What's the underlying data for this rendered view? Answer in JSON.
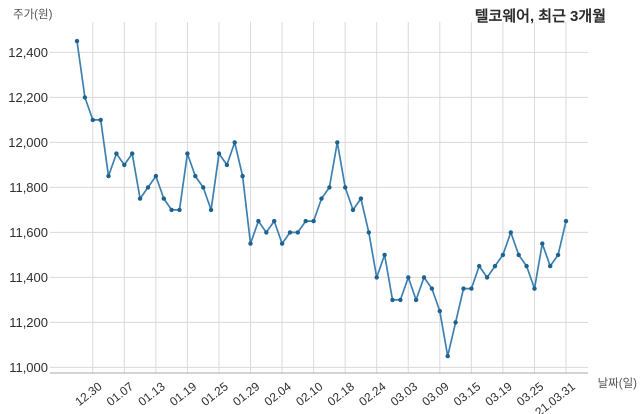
{
  "chart_data": {
    "type": "line",
    "title": "텔코웨어, 최근 3개월",
    "ylabel": "주가(원)",
    "xlabel": "날짜(일)",
    "values": [
      12450,
      12200,
      12100,
      12100,
      11850,
      11950,
      11900,
      11950,
      11750,
      11800,
      11850,
      11750,
      11700,
      11700,
      11950,
      11850,
      11800,
      11700,
      11950,
      11900,
      12000,
      11850,
      11550,
      11650,
      11600,
      11650,
      11550,
      11600,
      11600,
      11650,
      11650,
      11750,
      11800,
      12000,
      11800,
      11700,
      11750,
      11600,
      11400,
      11500,
      11300,
      11300,
      11400,
      11300,
      11400,
      11350,
      11250,
      11050,
      11200,
      11350,
      11350,
      11450,
      11400,
      11450,
      11500,
      11600,
      11500,
      11450,
      11350,
      11550,
      11450,
      11500,
      11650
    ],
    "x_tick_labels": [
      "12.30",
      "01.07",
      "01.13",
      "01.19",
      "01.25",
      "01.29",
      "02.04",
      "02.10",
      "02.18",
      "02.24",
      "03.03",
      "03.09",
      "03.15",
      "03.19",
      "03.25",
      "21.03.31"
    ],
    "x_tick_point_indices": [
      2,
      6,
      10,
      14,
      18,
      22,
      26,
      30,
      34,
      38,
      42,
      46,
      50,
      54,
      58,
      62
    ],
    "y_ticks": [
      11000,
      11200,
      11400,
      11600,
      11800,
      12000,
      12200,
      12400
    ],
    "y_tick_labels": [
      "11,000",
      "11,200",
      "11,400",
      "11,600",
      "11,800",
      "12,000",
      "12,200",
      "12,400"
    ],
    "ylim": [
      10975,
      12535
    ],
    "grid": true,
    "legend": "none",
    "colors": {
      "line": "#3d80b2",
      "marker": "#1e628f",
      "grid": "#dadada",
      "axis": "#a8a8a8",
      "tick_text": "#2f2f2f",
      "muted_text": "#555555",
      "background": "#ffffff"
    }
  }
}
